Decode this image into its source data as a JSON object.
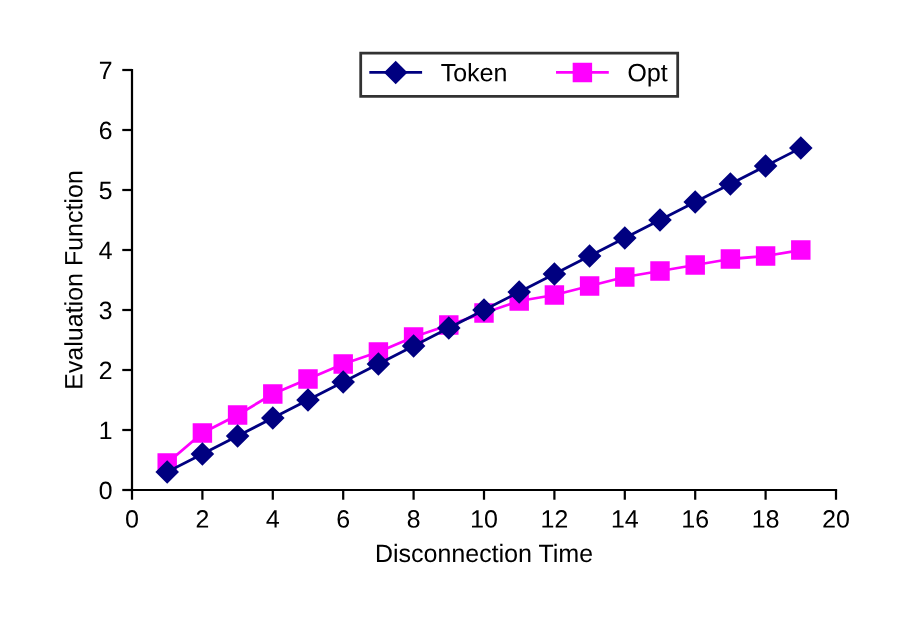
{
  "chart_data": {
    "type": "line",
    "xlabel": "Disconnection Time",
    "ylabel": "Evaluation Function",
    "x": [
      1,
      2,
      3,
      4,
      5,
      6,
      7,
      8,
      9,
      10,
      11,
      12,
      13,
      14,
      15,
      16,
      17,
      18,
      19
    ],
    "series": [
      {
        "name": "Token",
        "color": "#000080",
        "marker": "diamond",
        "values": [
          0.3,
          0.6,
          0.9,
          1.2,
          1.5,
          1.8,
          2.1,
          2.4,
          2.7,
          3.0,
          3.3,
          3.6,
          3.9,
          4.2,
          4.5,
          4.8,
          5.1,
          5.4,
          5.7
        ]
      },
      {
        "name": "Opt",
        "color": "#ff00ff",
        "marker": "square",
        "values": [
          0.45,
          0.95,
          1.25,
          1.6,
          1.85,
          2.1,
          2.3,
          2.55,
          2.75,
          2.95,
          3.15,
          3.25,
          3.4,
          3.55,
          3.65,
          3.75,
          3.85,
          3.9,
          4.0
        ]
      }
    ],
    "xlim": [
      0,
      20
    ],
    "xticks": [
      0,
      2,
      4,
      6,
      8,
      10,
      12,
      14,
      16,
      18,
      20
    ],
    "ylim": [
      0,
      7
    ],
    "yticks": [
      0,
      1,
      2,
      3,
      4,
      5,
      6,
      7
    ],
    "legend": "top",
    "grid": false,
    "line_style": "solid"
  }
}
